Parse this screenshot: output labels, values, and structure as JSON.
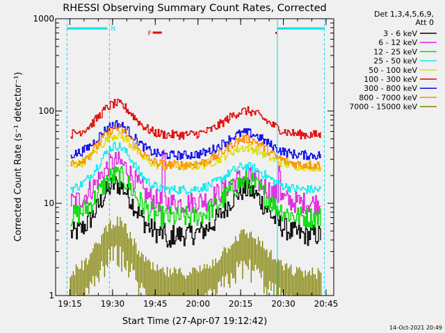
{
  "chart_data": {
    "type": "line",
    "title": "RHESSI Observing Summary Count Rates, Corrected",
    "xlabel": "Start Time (27-Apr-07 19:12:42)",
    "ylabel": "Corrected Count Rate (s⁻¹ detector⁻¹)",
    "yscale": "log",
    "ylim": [
      1,
      1000
    ],
    "xlim_minutes": [
      -2.7,
      95
    ],
    "x_tick_labels": [
      "19:15",
      "19:30",
      "19:45",
      "20:00",
      "20:15",
      "20:30",
      "20:45"
    ],
    "x_tick_minutes": [
      2.3,
      17.3,
      32.3,
      47.3,
      62.3,
      77.3,
      92.3
    ],
    "y_tick_labels": [
      "1",
      "10",
      "100",
      "1000"
    ],
    "y_tick_values": [
      1,
      10,
      100,
      1000
    ],
    "legend_header": [
      "Det 1,3,4,5,6,9,",
      "Att 0"
    ],
    "legend_position": "right",
    "series": [
      {
        "name": "3 - 6 keV",
        "color": "#000000",
        "baseline": 4.5,
        "peak1": 16,
        "peak2": 14
      },
      {
        "name": "6 - 12 keV",
        "color": "#e020e0",
        "baseline": 10,
        "peak1": 28,
        "peak2": 19
      },
      {
        "name": "12 - 25 keV",
        "color": "#00dd00",
        "baseline": 7,
        "peak1": 20,
        "peak2": 17
      },
      {
        "name": "25 - 50 keV",
        "color": "#00eeee",
        "baseline": 14,
        "peak1": 42,
        "peak2": 25
      },
      {
        "name": "50 - 100 keV",
        "color": "#dddd00",
        "baseline": 25,
        "peak1": 55,
        "peak2": 40
      },
      {
        "name": "100 - 300 keV",
        "color": "#e00000",
        "baseline": 55,
        "peak1": 120,
        "peak2": 100
      },
      {
        "name": "300 - 800 keV",
        "color": "#0000ee",
        "baseline": 33,
        "peak1": 72,
        "peak2": 58
      },
      {
        "name": "800 - 7000 keV",
        "color": "#ff8c00",
        "baseline": 26,
        "peak1": 65,
        "peak2": 50
      },
      {
        "name": "7000 - 15000 keV",
        "color": "#808000",
        "baseline": 1.5,
        "peak1": 5.5,
        "peak2": 4
      }
    ],
    "annotations": {
      "night_marker": "N",
      "flare_marker": "F",
      "saa_bar_color": "#00e0ee",
      "flare_color": "#e00000"
    }
  },
  "timestamp": "14-Oct-2021 20:49"
}
